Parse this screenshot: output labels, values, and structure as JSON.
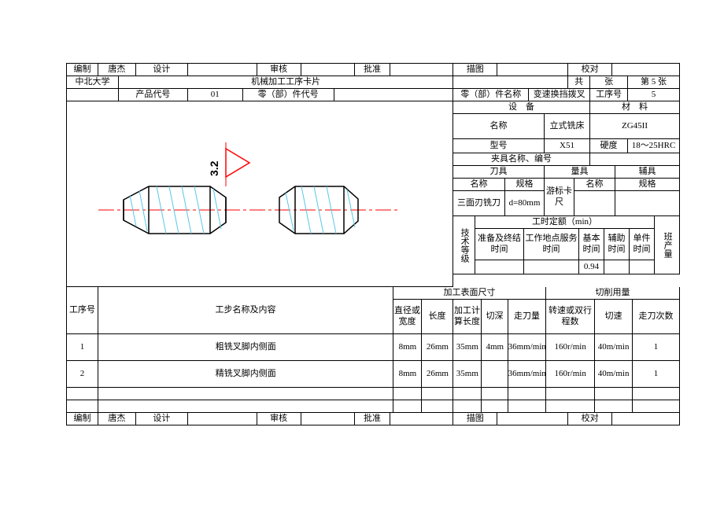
{
  "header": {
    "r1": {
      "c0": "编制",
      "c1": "唐杰",
      "c2": "设计",
      "c3": "",
      "c4": "审核",
      "c5": "",
      "c6": "批准",
      "c7": "",
      "c8": "描图",
      "c9": "",
      "c10": "校对",
      "c11": ""
    },
    "r2": {
      "c0": "中北大学",
      "c1": "机械加工工序卡片",
      "c2": "共",
      "c3": "张",
      "c4": "第 5 张"
    },
    "r3": {
      "c0": "",
      "c1": "产品代号",
      "c2": "01",
      "c3": "零（部）件代号",
      "c4": "",
      "c5": "零（部）件名称",
      "c6": "变速换挡拨叉",
      "c7": "工序号",
      "c8": "5"
    }
  },
  "equip": {
    "sec1": "设　备",
    "sec2": "材　料",
    "name_l": "名称",
    "name_v": "立式铣床",
    "mat": "ZG45II",
    "model_l": "型号",
    "model_v": "X51",
    "hard_l": "硬度",
    "hard_v": "18～25HRC",
    "fixture": "夹具名称、编号",
    "tool_sec": "刀具",
    "gauge_sec": "量具",
    "aux_sec": "辅具",
    "tname_l": "名称",
    "tspec_l": "规格",
    "gname_l": "名称",
    "gspec_l": "规格",
    "tname_v": "三面刃铣刀",
    "tspec_v": "d=80mm",
    "gname_v": "游标卡尺",
    "gspec_v": "",
    "tech": "技术等级",
    "quota": "工时定额（min）",
    "shift": "班产量",
    "q0": "准备及终结时间",
    "q1": "工作地点服务时间",
    "q2": "基本时间",
    "q3": "辅助时间",
    "q4": "单件时间",
    "q2v": "0.94"
  },
  "proc": {
    "h0": "工序号",
    "h1": "工步名称及内容",
    "sec1": "加工表面尺寸",
    "sec2": "切削用量",
    "c0": "直径或宽度",
    "c1": "长度",
    "c2": "加工计算长度",
    "c3": "切深",
    "c4": "走刀量",
    "c5": "转速或双行程数",
    "c6": "切速",
    "c7": "走刀次数",
    "rows": [
      {
        "n": "1",
        "name": "粗铣叉脚内侧面",
        "v": [
          "8mm",
          "26mm",
          "35mm",
          "4mm",
          "36mm/min",
          "160r/min",
          "40m/min",
          "1"
        ]
      },
      {
        "n": "2",
        "name": "精铣叉脚内侧面",
        "v": [
          "8mm",
          "26mm",
          "35mm",
          "",
          "36mm/min",
          "160r/min",
          "40m/min",
          "1"
        ]
      },
      {
        "n": "",
        "name": "",
        "v": [
          "",
          "",
          "",
          "",
          "",
          "",
          "",
          ""
        ]
      },
      {
        "n": "",
        "name": "",
        "v": [
          "",
          "",
          "",
          "",
          "",
          "",
          "",
          ""
        ]
      }
    ]
  },
  "footer": {
    "c0": "编制",
    "c1": "唐杰",
    "c2": "设计",
    "c3": "",
    "c4": "审核",
    "c5": "",
    "c6": "批准",
    "c7": "",
    "c8": "描图",
    "c9": "",
    "c10": "校对",
    "c11": ""
  },
  "drawing": {
    "label": "3.2",
    "colors": {
      "outline": "#000000",
      "center": "#ff0000",
      "hatch": "#58c8e8",
      "tri": "#ff0000"
    }
  }
}
